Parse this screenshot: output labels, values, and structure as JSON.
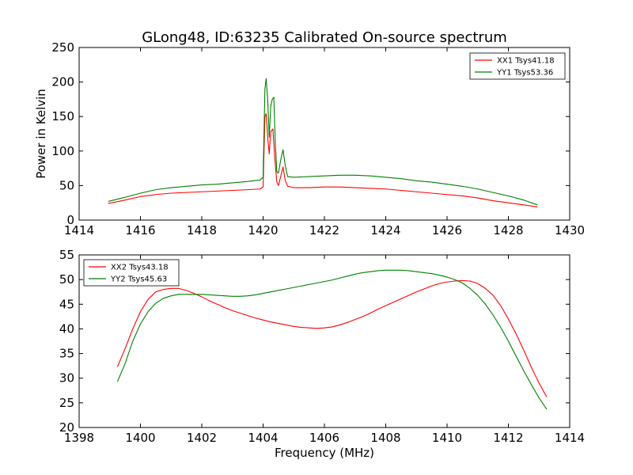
{
  "figure": {
    "title": "GLong48, ID:63235 Calibrated On-source spectrum",
    "ylabel": "Power in Kelvin",
    "xlabel": "Frequency (MHz)",
    "colors": {
      "red": "#ff0000",
      "green": "#008000",
      "axes": "#000000",
      "background": "#ffffff"
    }
  },
  "chart_data": [
    {
      "type": "line",
      "title": "GLong48, ID:63235 Calibrated On-source spectrum",
      "xlabel": "",
      "ylabel": "Power in Kelvin",
      "xlim": [
        1414,
        1430
      ],
      "ylim": [
        0,
        250
      ],
      "xticks": [
        1414,
        1416,
        1418,
        1420,
        1422,
        1424,
        1426,
        1428,
        1430
      ],
      "yticks": [
        0,
        50,
        100,
        150,
        200,
        250
      ],
      "grid": false,
      "legend": "top-right",
      "series": [
        {
          "name": "XX1 Tsys41.18",
          "color": "#ff0000",
          "points": [
            [
              1414.95,
              24
            ],
            [
              1415.5,
              29
            ],
            [
              1416.0,
              34
            ],
            [
              1416.5,
              37
            ],
            [
              1417.0,
              39
            ],
            [
              1417.5,
              40
            ],
            [
              1418.0,
              41
            ],
            [
              1418.5,
              42
            ],
            [
              1419.0,
              43
            ],
            [
              1419.5,
              44
            ],
            [
              1419.9,
              45
            ],
            [
              1420.0,
              48
            ],
            [
              1420.06,
              150
            ],
            [
              1420.1,
              154
            ],
            [
              1420.15,
              120
            ],
            [
              1420.2,
              96
            ],
            [
              1420.25,
              128
            ],
            [
              1420.32,
              132
            ],
            [
              1420.38,
              90
            ],
            [
              1420.45,
              55
            ],
            [
              1420.5,
              50
            ],
            [
              1420.58,
              64
            ],
            [
              1420.65,
              77
            ],
            [
              1420.72,
              58
            ],
            [
              1420.8,
              49
            ],
            [
              1421.0,
              47
            ],
            [
              1421.5,
              47
            ],
            [
              1422.0,
              48
            ],
            [
              1422.5,
              48
            ],
            [
              1423.0,
              47
            ],
            [
              1423.5,
              46
            ],
            [
              1424.0,
              45
            ],
            [
              1424.5,
              43
            ],
            [
              1425.0,
              41
            ],
            [
              1425.5,
              39
            ],
            [
              1426.0,
              37
            ],
            [
              1426.5,
              35
            ],
            [
              1427.0,
              32
            ],
            [
              1427.5,
              28
            ],
            [
              1428.0,
              25
            ],
            [
              1428.5,
              22
            ],
            [
              1428.95,
              19
            ]
          ]
        },
        {
          "name": "YY1 Tsys53.36",
          "color": "#008000",
          "points": [
            [
              1414.95,
              27
            ],
            [
              1415.5,
              33
            ],
            [
              1416.0,
              39
            ],
            [
              1416.5,
              44
            ],
            [
              1417.0,
              47
            ],
            [
              1417.5,
              49
            ],
            [
              1418.0,
              51
            ],
            [
              1418.5,
              52
            ],
            [
              1419.0,
              54
            ],
            [
              1419.5,
              56
            ],
            [
              1419.9,
              58
            ],
            [
              1420.0,
              62
            ],
            [
              1420.06,
              190
            ],
            [
              1420.1,
              205
            ],
            [
              1420.15,
              175
            ],
            [
              1420.2,
              120
            ],
            [
              1420.25,
              165
            ],
            [
              1420.3,
              175
            ],
            [
              1420.35,
              178
            ],
            [
              1420.4,
              110
            ],
            [
              1420.45,
              70
            ],
            [
              1420.5,
              68
            ],
            [
              1420.58,
              88
            ],
            [
              1420.65,
              102
            ],
            [
              1420.72,
              80
            ],
            [
              1420.8,
              63
            ],
            [
              1421.0,
              62
            ],
            [
              1421.5,
              63
            ],
            [
              1422.0,
              64
            ],
            [
              1422.5,
              65
            ],
            [
              1423.0,
              65
            ],
            [
              1423.5,
              64
            ],
            [
              1424.0,
              62
            ],
            [
              1424.5,
              60
            ],
            [
              1425.0,
              57
            ],
            [
              1425.5,
              55
            ],
            [
              1426.0,
              52
            ],
            [
              1426.5,
              49
            ],
            [
              1427.0,
              45
            ],
            [
              1427.5,
              40
            ],
            [
              1428.0,
              35
            ],
            [
              1428.5,
              29
            ],
            [
              1428.95,
              22
            ]
          ]
        }
      ]
    },
    {
      "type": "line",
      "title": "",
      "xlabel": "Frequency (MHz)",
      "ylabel": "",
      "xlim": [
        1398,
        1414
      ],
      "ylim": [
        20,
        55
      ],
      "xticks": [
        1398,
        1400,
        1402,
        1404,
        1406,
        1408,
        1410,
        1412,
        1414
      ],
      "yticks": [
        20,
        25,
        30,
        35,
        40,
        45,
        50,
        55
      ],
      "grid": false,
      "legend": "top-left",
      "series": [
        {
          "name": "XX2 Tsys43.18",
          "color": "#ff0000",
          "points": [
            [
              1399.25,
              32.3
            ],
            [
              1399.5,
              36
            ],
            [
              1399.75,
              40
            ],
            [
              1400.0,
              43.5
            ],
            [
              1400.25,
              46
            ],
            [
              1400.5,
              47.5
            ],
            [
              1400.75,
              48
            ],
            [
              1401.0,
              48.2
            ],
            [
              1401.25,
              48.2
            ],
            [
              1401.5,
              47.8
            ],
            [
              1401.75,
              47.2
            ],
            [
              1402.0,
              46.5
            ],
            [
              1402.25,
              45.7
            ],
            [
              1402.5,
              45
            ],
            [
              1402.75,
              44.3
            ],
            [
              1403.0,
              43.7
            ],
            [
              1403.25,
              43.2
            ],
            [
              1403.5,
              42.7
            ],
            [
              1403.75,
              42.2
            ],
            [
              1404.0,
              41.8
            ],
            [
              1404.25,
              41.4
            ],
            [
              1404.5,
              41.1
            ],
            [
              1404.75,
              40.8
            ],
            [
              1405.0,
              40.5
            ],
            [
              1405.25,
              40.3
            ],
            [
              1405.5,
              40.2
            ],
            [
              1405.75,
              40.1
            ],
            [
              1406.0,
              40.2
            ],
            [
              1406.25,
              40.4
            ],
            [
              1406.5,
              40.8
            ],
            [
              1406.75,
              41.3
            ],
            [
              1407.0,
              41.9
            ],
            [
              1407.25,
              42.5
            ],
            [
              1407.5,
              43.2
            ],
            [
              1407.75,
              44
            ],
            [
              1408.0,
              44.7
            ],
            [
              1408.25,
              45.4
            ],
            [
              1408.5,
              46.1
            ],
            [
              1408.75,
              46.8
            ],
            [
              1409.0,
              47.5
            ],
            [
              1409.25,
              48.1
            ],
            [
              1409.5,
              48.7
            ],
            [
              1409.75,
              49.2
            ],
            [
              1410.0,
              49.5
            ],
            [
              1410.25,
              49.7
            ],
            [
              1410.5,
              49.8
            ],
            [
              1410.75,
              49.7
            ],
            [
              1411.0,
              49.2
            ],
            [
              1411.25,
              48.2
            ],
            [
              1411.5,
              46.8
            ],
            [
              1411.75,
              44.7
            ],
            [
              1412.0,
              42
            ],
            [
              1412.25,
              39
            ],
            [
              1412.5,
              35.7
            ],
            [
              1412.75,
              32.2
            ],
            [
              1413.0,
              29
            ],
            [
              1413.25,
              26.2
            ]
          ]
        },
        {
          "name": "YY2 Tsys45.63",
          "color": "#008000",
          "points": [
            [
              1399.25,
              29.3
            ],
            [
              1399.5,
              33
            ],
            [
              1399.75,
              37.5
            ],
            [
              1400.0,
              41
            ],
            [
              1400.25,
              43.5
            ],
            [
              1400.5,
              45.2
            ],
            [
              1400.75,
              46.2
            ],
            [
              1401.0,
              46.7
            ],
            [
              1401.25,
              47
            ],
            [
              1401.5,
              47
            ],
            [
              1401.75,
              47
            ],
            [
              1402.0,
              47
            ],
            [
              1402.25,
              46.9
            ],
            [
              1402.5,
              46.8
            ],
            [
              1402.75,
              46.7
            ],
            [
              1403.0,
              46.6
            ],
            [
              1403.25,
              46.6
            ],
            [
              1403.5,
              46.7
            ],
            [
              1403.75,
              46.9
            ],
            [
              1404.0,
              47.2
            ],
            [
              1404.25,
              47.5
            ],
            [
              1404.5,
              47.8
            ],
            [
              1404.75,
              48.1
            ],
            [
              1405.0,
              48.4
            ],
            [
              1405.25,
              48.7
            ],
            [
              1405.5,
              49
            ],
            [
              1405.75,
              49.3
            ],
            [
              1406.0,
              49.6
            ],
            [
              1406.25,
              49.9
            ],
            [
              1406.5,
              50.3
            ],
            [
              1406.75,
              50.7
            ],
            [
              1407.0,
              51.1
            ],
            [
              1407.25,
              51.4
            ],
            [
              1407.5,
              51.6
            ],
            [
              1407.75,
              51.8
            ],
            [
              1408.0,
              51.9
            ],
            [
              1408.25,
              51.9
            ],
            [
              1408.5,
              51.9
            ],
            [
              1408.75,
              51.8
            ],
            [
              1409.0,
              51.6
            ],
            [
              1409.25,
              51.4
            ],
            [
              1409.5,
              51.2
            ],
            [
              1409.75,
              50.9
            ],
            [
              1410.0,
              50.5
            ],
            [
              1410.25,
              50
            ],
            [
              1410.5,
              49.3
            ],
            [
              1410.75,
              48.2
            ],
            [
              1411.0,
              46.8
            ],
            [
              1411.25,
              45
            ],
            [
              1411.5,
              42.8
            ],
            [
              1411.75,
              40.3
            ],
            [
              1412.0,
              37.5
            ],
            [
              1412.25,
              34.5
            ],
            [
              1412.5,
              31.5
            ],
            [
              1412.75,
              28.7
            ],
            [
              1413.0,
              26
            ],
            [
              1413.25,
              23.7
            ]
          ]
        }
      ]
    }
  ]
}
